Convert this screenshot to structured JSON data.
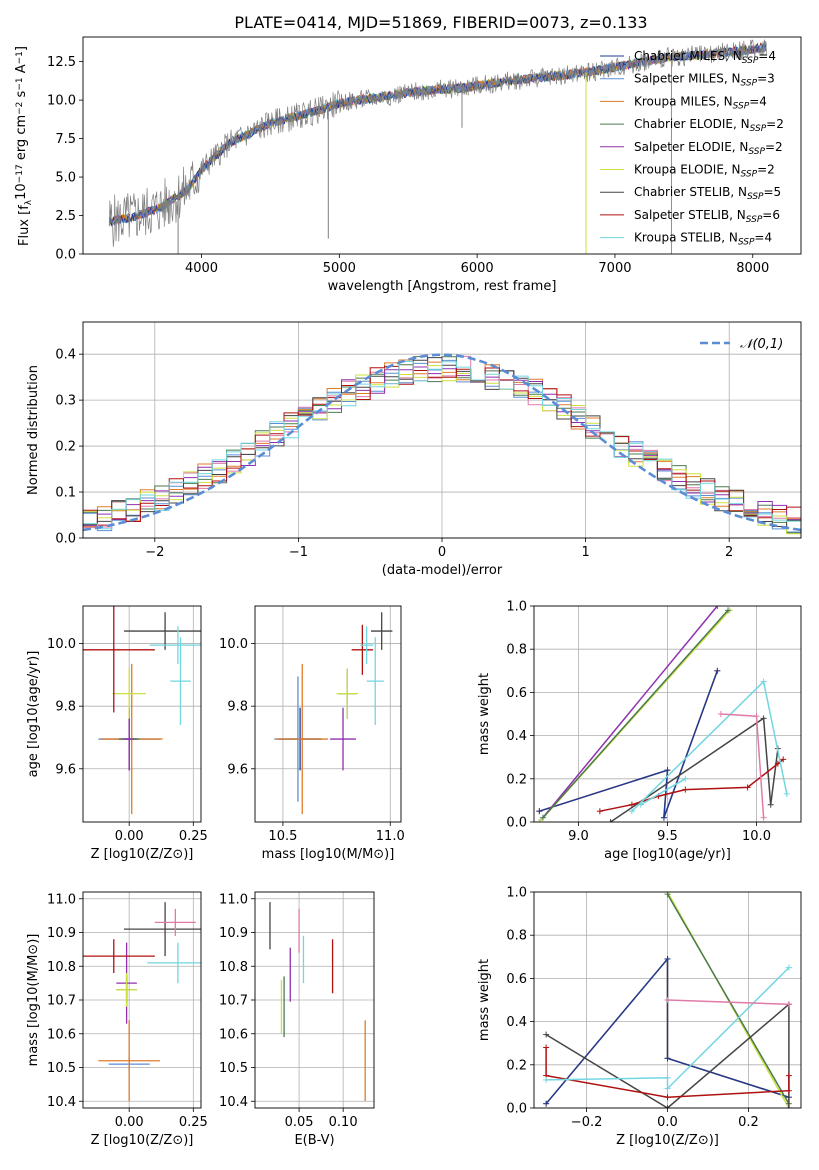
{
  "figure_title": "PLATE=0414, MJD=51869, FIBERID=0073, z=0.133",
  "models": [
    {
      "name": "Chabrier MILES",
      "nssp": "4",
      "color": "#1f3a93"
    },
    {
      "name": "Salpeter MILES",
      "nssp": "3",
      "color": "#5c8fd6"
    },
    {
      "name": "Kroupa MILES",
      "nssp": "4",
      "color": "#e07b2a"
    },
    {
      "name": "Chabrier ELODIE",
      "nssp": "2",
      "color": "#4b7a50"
    },
    {
      "name": "Salpeter ELODIE",
      "nssp": "2",
      "color": "#9030b0"
    },
    {
      "name": "Kroupa ELODIE",
      "nssp": "2",
      "color": "#cde040"
    },
    {
      "name": "Chabrier STELIB",
      "nssp": "5",
      "color": "#454545"
    },
    {
      "name": "Salpeter STELIB",
      "nssp": "6",
      "color": "#b01010"
    },
    {
      "name": "Kroupa STELIB",
      "nssp": "4",
      "color": "#72d6e0"
    }
  ],
  "chart_data": [
    {
      "id": "spectrum",
      "type": "line",
      "title": "PLATE=0414, MJD=51869, FIBERID=0073, z=0.133",
      "xlabel": "wavelength [Angstrom, rest frame]",
      "ylabel": "Flux [f_λ 10^-17 erg cm^-2 s^-1 A^-1]",
      "xlim": [
        3140,
        8350
      ],
      "ylim": [
        0,
        14.1
      ],
      "xticks": [
        4000,
        5000,
        6000,
        7000,
        8000
      ],
      "yticks": [
        0.0,
        2.5,
        5.0,
        7.5,
        10.0,
        12.5
      ],
      "data_color": "#808080",
      "continuum_x": [
        3330,
        3500,
        3700,
        3900,
        4000,
        4200,
        4500,
        4800,
        5000,
        5300,
        5600,
        5900,
        6200,
        6500,
        6800,
        7100,
        7400,
        7700,
        8000,
        8100
      ],
      "continuum_y": [
        2.1,
        2.4,
        3.0,
        4.2,
        5.5,
        7.2,
        8.5,
        9.2,
        9.8,
        10.2,
        10.6,
        10.8,
        11.2,
        11.5,
        11.8,
        12.3,
        12.8,
        13.0,
        13.3,
        13.5
      ],
      "legend_position": "upper right"
    },
    {
      "id": "residuals",
      "type": "line",
      "xlabel": "(data-model)/error",
      "ylabel": "Normed distribution",
      "xlim": [
        -2.5,
        2.5
      ],
      "ylim": [
        0,
        0.47
      ],
      "xticks": [
        -2,
        -1,
        0,
        1,
        2
      ],
      "yticks": [
        0.0,
        0.1,
        0.2,
        0.3,
        0.4
      ],
      "grid": true,
      "normal_label": "𝒩(0,1)",
      "normal_color": "#5b8dd6",
      "legend_position": "upper right"
    },
    {
      "id": "age_vs_Z",
      "type": "scatter",
      "xlabel": "Z [log10(Z/Z⊙)]",
      "ylabel": "age  [log10(age/yr)]",
      "xlim": [
        -0.18,
        0.28
      ],
      "ylim": [
        9.43,
        10.12
      ],
      "xticks": [
        0.0,
        0.25
      ],
      "yticks": [
        9.6,
        9.8,
        10.0
      ],
      "grid": true,
      "points": [
        {
          "x": 0.0,
          "y": 9.695,
          "xerr": 0.03,
          "yerr": 0.1,
          "model": 0
        },
        {
          "x": 0.0,
          "y": 9.695,
          "xerr": 0.12,
          "yerr": 0.1,
          "model": 1
        },
        {
          "x": 0.01,
          "y": 9.695,
          "xerr": 0.12,
          "yerr": 0.24,
          "model": 2
        },
        {
          "x": 0.0,
          "y": 9.695,
          "xerr": 0.04,
          "yerr": 0.1,
          "model": 3
        },
        {
          "x": 0.0,
          "y": 9.695,
          "xerr": 0.02,
          "yerr": 0.1,
          "model": 4
        },
        {
          "x": 0.0,
          "y": 9.84,
          "xerr": 0.065,
          "yerr": 0.08,
          "model": 5
        },
        {
          "x": 0.14,
          "y": 10.04,
          "xerr": 0.16,
          "yerr": 0.06,
          "model": 6
        },
        {
          "x": -0.06,
          "y": 9.98,
          "xerr": 0.16,
          "yerr": 0.2,
          "model": 7
        },
        {
          "x": 0.2,
          "y": 9.88,
          "xerr": 0.04,
          "yerr": 0.14,
          "model": 8
        },
        {
          "x": 0.19,
          "y": 9.995,
          "xerr": 0.11,
          "yerr": 0.06,
          "model": 8
        }
      ]
    },
    {
      "id": "age_vs_mass",
      "type": "scatter",
      "xlabel": "mass [log10(M/M⊙)]",
      "ylabel": "",
      "xlim": [
        10.37,
        11.05
      ],
      "ylim": [
        9.43,
        10.12
      ],
      "xticks": [
        10.5,
        11.0
      ],
      "yticks": [
        9.6,
        9.8,
        10.0
      ],
      "grid": true,
      "points": [
        {
          "x": 10.58,
          "y": 9.695,
          "xerr": 0.1,
          "yerr": 0.1,
          "model": 0
        },
        {
          "x": 10.57,
          "y": 9.695,
          "xerr": 0.11,
          "yerr": 0.2,
          "model": 1
        },
        {
          "x": 10.59,
          "y": 9.695,
          "xerr": 0.12,
          "yerr": 0.24,
          "model": 2
        },
        {
          "x": 10.8,
          "y": 9.84,
          "xerr": 0.04,
          "yerr": 0.08,
          "model": 3
        },
        {
          "x": 10.78,
          "y": 9.695,
          "xerr": 0.06,
          "yerr": 0.1,
          "model": 4
        },
        {
          "x": 10.8,
          "y": 9.84,
          "xerr": 0.05,
          "yerr": 0.08,
          "model": 5
        },
        {
          "x": 10.96,
          "y": 10.04,
          "xerr": 0.05,
          "yerr": 0.06,
          "model": 6
        },
        {
          "x": 10.87,
          "y": 9.98,
          "xerr": 0.05,
          "yerr": 0.08,
          "model": 7
        },
        {
          "x": 10.93,
          "y": 9.88,
          "xerr": 0.04,
          "yerr": 0.14,
          "model": 8
        },
        {
          "x": 10.89,
          "y": 9.995,
          "xerr": 0.03,
          "yerr": 0.06,
          "model": 8
        }
      ]
    },
    {
      "id": "mass_weight_vs_age",
      "type": "line",
      "xlabel": "age  [log10(age/yr)]",
      "ylabel": "mass weight",
      "xlim": [
        8.75,
        10.25
      ],
      "ylim": [
        0.0,
        1.0
      ],
      "xticks": [
        9.0,
        9.5,
        10.0
      ],
      "yticks": [
        0.0,
        0.2,
        0.4,
        0.6,
        0.8,
        1.0
      ],
      "grid": true,
      "series": [
        {
          "model": 2,
          "x": [
            8.78,
            9.5,
            9.48,
            9.78
          ],
          "y": [
            0.05,
            0.24,
            0.02,
            0.7
          ]
        },
        {
          "model": 0,
          "x": [
            8.78,
            9.5,
            9.48,
            9.78
          ],
          "y": [
            0.05,
            0.24,
            0.02,
            0.7
          ]
        },
        {
          "model": 4,
          "x": [
            8.78,
            9.78
          ],
          "y": [
            0.0,
            1.0
          ]
        },
        {
          "model": 5,
          "x": [
            8.78,
            9.85
          ],
          "y": [
            0.0,
            0.98
          ]
        },
        {
          "model": 3,
          "x": [
            8.8,
            9.84
          ],
          "y": [
            0.02,
            0.98
          ]
        },
        {
          "model": 6,
          "x": [
            9.18,
            10.04,
            10.08,
            10.12
          ],
          "y": [
            0.0,
            0.48,
            0.08,
            0.34
          ]
        },
        {
          "model": 7,
          "x": [
            9.12,
            9.3,
            9.45,
            9.6,
            9.95,
            10.12,
            10.15
          ],
          "y": [
            0.05,
            0.08,
            0.12,
            0.15,
            0.16,
            0.27,
            0.29
          ]
        },
        {
          "model": 8,
          "x": [
            9.3,
            10.04,
            10.17
          ],
          "y": [
            0.05,
            0.65,
            0.13
          ]
        },
        {
          "model": 8,
          "x": [
            9.35,
            9.6
          ],
          "y": [
            0.08,
            0.2
          ]
        },
        {
          "model": 9,
          "x": [
            9.8,
            10.0,
            10.04
          ],
          "y": [
            0.5,
            0.49,
            0.02
          ]
        }
      ]
    },
    {
      "id": "mass_vs_Z",
      "type": "scatter",
      "xlabel": "Z [log10(Z/Z⊙)]",
      "ylabel": "mass [log10(M/M⊙)]",
      "xlim": [
        -0.18,
        0.28
      ],
      "ylim": [
        10.38,
        11.02
      ],
      "xticks": [
        0.0,
        0.25
      ],
      "yticks": [
        10.4,
        10.5,
        10.6,
        10.7,
        10.8,
        10.9,
        11.0
      ],
      "grid": true,
      "points": [
        {
          "x": 0.0,
          "y": 10.51,
          "xerr": 0.08,
          "yerr": 0.02,
          "model": 1
        },
        {
          "x": 0.0,
          "y": 10.52,
          "xerr": 0.12,
          "yerr": 0.12,
          "model": 2
        },
        {
          "x": -0.01,
          "y": 10.73,
          "xerr": 0.04,
          "yerr": 0.04,
          "model": 3
        },
        {
          "x": -0.01,
          "y": 10.75,
          "xerr": 0.04,
          "yerr": 0.12,
          "model": 4
        },
        {
          "x": -0.01,
          "y": 10.73,
          "xerr": 0.04,
          "yerr": 0.05,
          "model": 5
        },
        {
          "x": 0.14,
          "y": 10.91,
          "xerr": 0.16,
          "yerr": 0.08,
          "model": 6
        },
        {
          "x": -0.06,
          "y": 10.83,
          "xerr": 0.16,
          "yerr": 0.05,
          "model": 7
        },
        {
          "x": 0.18,
          "y": 10.93,
          "xerr": 0.08,
          "yerr": 0.04,
          "model": 9
        },
        {
          "x": 0.19,
          "y": 10.81,
          "xerr": 0.12,
          "yerr": 0.06,
          "model": 8
        }
      ]
    },
    {
      "id": "mass_vs_ebv",
      "type": "scatter",
      "xlabel": "E(B-V)",
      "ylabel": "",
      "xlim": [
        0.0,
        0.135
      ],
      "ylim": [
        10.38,
        11.02
      ],
      "xticks": [
        0.05,
        0.1
      ],
      "yticks": [
        10.4,
        10.5,
        10.6,
        10.7,
        10.8,
        10.9,
        11.0
      ],
      "grid": true,
      "points": [
        {
          "x": 0.03,
          "y": 10.68,
          "yerr": 0.08,
          "model": 5
        },
        {
          "x": 0.033,
          "y": 10.68,
          "yerr": 0.09,
          "model": 3
        },
        {
          "x": 0.04,
          "y": 10.775,
          "yerr": 0.08,
          "model": 4
        },
        {
          "x": 0.05,
          "y": 10.905,
          "yerr": 0.065,
          "model": 9
        },
        {
          "x": 0.055,
          "y": 10.82,
          "yerr": 0.07,
          "model": 8
        },
        {
          "x": 0.088,
          "y": 10.8,
          "yerr": 0.08,
          "model": 7
        },
        {
          "x": 0.017,
          "y": 10.92,
          "yerr": 0.07,
          "model": 6
        },
        {
          "x": 0.125,
          "y": 10.52,
          "yerr": 0.12,
          "model": 2
        }
      ]
    },
    {
      "id": "mass_weight_vs_Z",
      "type": "line",
      "xlabel": "Z [log10(Z/Z⊙)]",
      "ylabel": "mass weight",
      "xlim": [
        -0.33,
        0.33
      ],
      "ylim": [
        0.0,
        1.0
      ],
      "xticks": [
        -0.2,
        0.0,
        0.2
      ],
      "yticks": [
        0.0,
        0.2,
        0.4,
        0.6,
        0.8,
        1.0
      ],
      "grid": true,
      "series": [
        {
          "model": 2,
          "x": [
            -0.3,
            0.0,
            0.0,
            0.3
          ],
          "y": [
            0.02,
            0.69,
            0.23,
            0.05
          ]
        },
        {
          "model": 0,
          "x": [
            -0.3,
            0.0,
            0.0,
            0.3
          ],
          "y": [
            0.02,
            0.69,
            0.23,
            0.05
          ]
        },
        {
          "model": 5,
          "x": [
            0.0,
            0.3
          ],
          "y": [
            1.0,
            0.0
          ]
        },
        {
          "model": 3,
          "x": [
            0.0,
            0.3
          ],
          "y": [
            0.99,
            0.02
          ]
        },
        {
          "model": 6,
          "x": [
            -0.3,
            0.0,
            0.3,
            0.3
          ],
          "y": [
            0.34,
            0.0,
            0.48,
            0.0
          ]
        },
        {
          "model": 7,
          "x": [
            -0.3,
            -0.3,
            0.0,
            0.3,
            0.3
          ],
          "y": [
            0.28,
            0.15,
            0.05,
            0.08,
            0.15
          ]
        },
        {
          "model": 8,
          "x": [
            -0.3,
            0.0,
            0.0,
            0.3
          ],
          "y": [
            0.13,
            0.14,
            0.09,
            0.65
          ]
        },
        {
          "model": 9,
          "x": [
            0.0,
            0.3
          ],
          "y": [
            0.5,
            0.48
          ]
        }
      ]
    }
  ]
}
